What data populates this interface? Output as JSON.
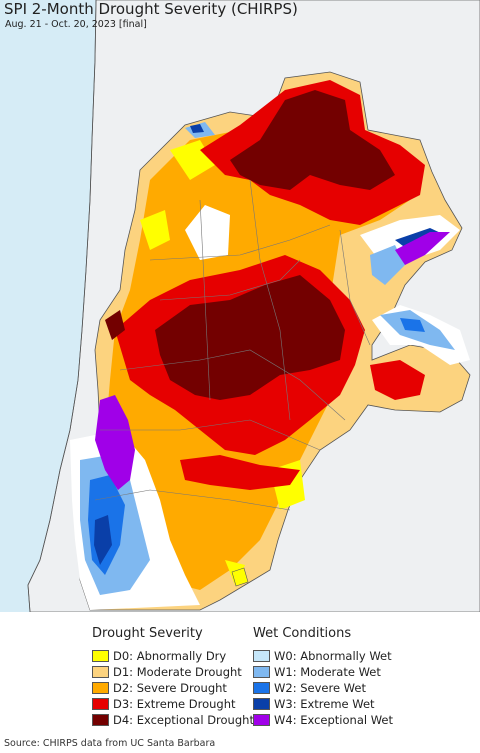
{
  "header": {
    "title": "SPI 2-Month Drought Severity (CHIRPS)",
    "subtitle": "Aug. 21 - Oct. 20, 2023 [final]"
  },
  "legend": {
    "drought": {
      "heading": "Drought Severity",
      "items": [
        {
          "label": "D0: Abnormally Dry",
          "color": "#ffff00"
        },
        {
          "label": "D1: Moderate Drought",
          "color": "#fcd37f"
        },
        {
          "label": "D2: Severe Drought",
          "color": "#ffaa00"
        },
        {
          "label": "D3: Extreme Drought",
          "color": "#e60000"
        },
        {
          "label": "D4: Exceptional Drought",
          "color": "#730000"
        }
      ]
    },
    "wet": {
      "heading": "Wet Conditions",
      "items": [
        {
          "label": "W0: Abnormally Wet",
          "color": "#c6e7fa"
        },
        {
          "label": "W1: Moderate Wet",
          "color": "#7fb8f0"
        },
        {
          "label": "W2: Severe Wet",
          "color": "#1a73e8"
        },
        {
          "label": "W3: Extreme Wet",
          "color": "#0a3fa8"
        },
        {
          "label": "W4: Exceptional Wet",
          "color": "#a000e8"
        }
      ]
    }
  },
  "footer": {
    "source": "Source: CHIRPS data from UC Santa Barbara"
  }
}
